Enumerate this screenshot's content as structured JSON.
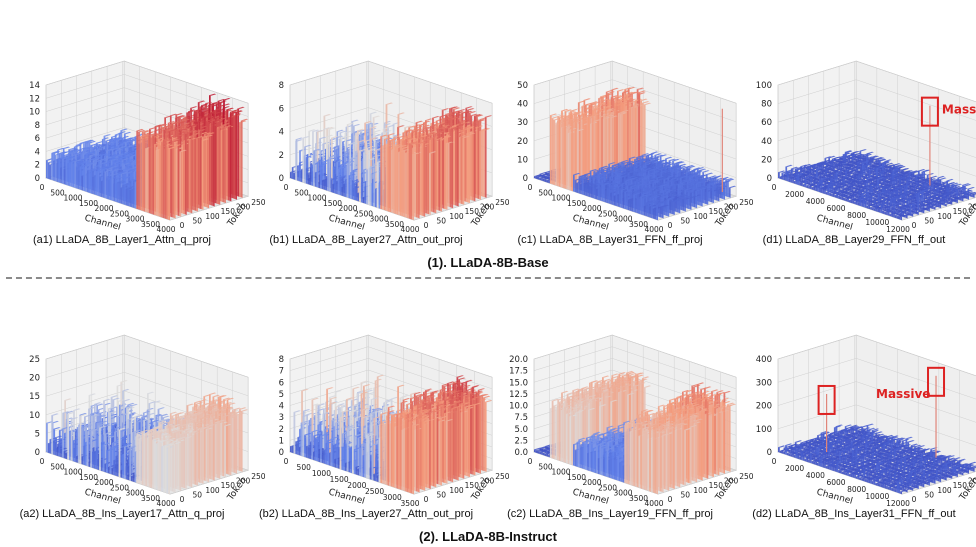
{
  "figure": {
    "groups": [
      {
        "title": "(1). LLaDA-8B-Base"
      },
      {
        "title": "(2). LLaDA-8B-Instruct"
      }
    ]
  },
  "chart_data": [
    {
      "type": "surface3d",
      "id": "a1",
      "caption": "(a1) LLaDA_8B_Layer1_Attn_q_proj",
      "xlabel": "Channel",
      "ylabel": "Token",
      "x_ticks": [
        "0",
        "500",
        "1000",
        "1500",
        "2000",
        "2500",
        "3000",
        "3500",
        "4000"
      ],
      "y_ticks": [
        "0",
        "50",
        "100",
        "150",
        "200",
        "250"
      ],
      "z_ticks": [
        "0",
        "2",
        "4",
        "6",
        "8",
        "10",
        "12",
        "14"
      ],
      "xlim": [
        0,
        4096
      ],
      "ylim": [
        0,
        256
      ],
      "zlim": [
        0,
        14
      ],
      "colormap": "coolwarm",
      "features": [
        {
          "kind": "band",
          "x_start": 0,
          "x_end": 3000,
          "level": 3.8
        },
        {
          "kind": "step",
          "x_start": 3000,
          "x_end": 4096,
          "level_front": 11.5,
          "level_back": 13.5
        }
      ]
    },
    {
      "type": "surface3d",
      "id": "b1",
      "caption": "(b1) LLaDA_8B_Layer27_Attn_out_proj",
      "xlabel": "Channel",
      "ylabel": "Token",
      "x_ticks": [
        "0",
        "500",
        "1000",
        "1500",
        "2000",
        "2500",
        "3000",
        "3500",
        "4000"
      ],
      "y_ticks": [
        "0",
        "50",
        "100",
        "150",
        "200",
        "250"
      ],
      "z_ticks": [
        "0",
        "2",
        "4",
        "6",
        "8"
      ],
      "xlim": [
        0,
        4096
      ],
      "ylim": [
        0,
        256
      ],
      "zlim": [
        0,
        9
      ],
      "colormap": "coolwarm",
      "features": [
        {
          "kind": "noise",
          "x_start": 0,
          "x_end": 3000,
          "level": 3.5
        },
        {
          "kind": "step",
          "x_start": 3000,
          "x_end": 4096,
          "level_front": 7.0,
          "level_back": 7.8
        }
      ]
    },
    {
      "type": "surface3d",
      "id": "c1",
      "caption": "(c1) LLaDA_8B_Layer31_FFN_ff_proj",
      "xlabel": "Channel",
      "ylabel": "Token",
      "x_ticks": [
        "0",
        "500",
        "1000",
        "1500",
        "2000",
        "2500",
        "3000",
        "3500",
        "4000"
      ],
      "y_ticks": [
        "0",
        "50",
        "100",
        "150",
        "200",
        "250"
      ],
      "z_ticks": [
        "0",
        "10",
        "20",
        "30",
        "40",
        "50"
      ],
      "xlim": [
        0,
        4096
      ],
      "ylim": [
        0,
        256
      ],
      "zlim": [
        0,
        55
      ],
      "colormap": "coolwarm",
      "features": [
        {
          "kind": "step",
          "x_start": 500,
          "x_end": 1300,
          "level_front": 40,
          "level_back": 44
        },
        {
          "kind": "band",
          "x_start": 1300,
          "x_end": 4096,
          "level": 10
        },
        {
          "kind": "spike",
          "x": 3900,
          "y": 230,
          "level": 52
        }
      ]
    },
    {
      "type": "surface3d",
      "id": "d1",
      "caption": "(d1) LLaDA_8B_Layer29_FFN_ff_out",
      "xlabel": "Channel",
      "ylabel": "Token",
      "x_ticks": [
        "0",
        "2000",
        "4000",
        "6000",
        "8000",
        "10000",
        "12000"
      ],
      "y_ticks": [
        "0",
        "50",
        "100",
        "150",
        "200",
        "250"
      ],
      "z_ticks": [
        "0",
        "20",
        "40",
        "60",
        "80",
        "100"
      ],
      "xlim": [
        0,
        12288
      ],
      "ylim": [
        0,
        256
      ],
      "zlim": [
        0,
        110
      ],
      "colormap": "coolwarm",
      "features": [
        {
          "kind": "noise",
          "x_start": 0,
          "x_end": 12288,
          "level": 8
        },
        {
          "kind": "spike",
          "x": 9000,
          "y": 200,
          "level": 100
        }
      ],
      "annotations": [
        {
          "text": "Massive",
          "color": "#dd2222"
        }
      ]
    },
    {
      "type": "surface3d",
      "id": "a2",
      "caption": "(a2) LLaDA_8B_Ins_Layer17_Attn_q_proj",
      "xlabel": "Channel",
      "ylabel": "Token",
      "x_ticks": [
        "0",
        "500",
        "1000",
        "1500",
        "2000",
        "2500",
        "3000",
        "3500",
        "4000"
      ],
      "y_ticks": [
        "0",
        "50",
        "100",
        "150",
        "200",
        "250"
      ],
      "z_ticks": [
        "0",
        "5",
        "10",
        "15",
        "20",
        "25"
      ],
      "xlim": [
        0,
        4096
      ],
      "ylim": [
        0,
        256
      ],
      "zlim": [
        0,
        27
      ],
      "colormap": "coolwarm",
      "features": [
        {
          "kind": "noise",
          "x_start": 0,
          "x_end": 3000,
          "level": 9
        },
        {
          "kind": "step",
          "x_start": 3000,
          "x_end": 4096,
          "level_front": 15,
          "level_back": 19
        }
      ]
    },
    {
      "type": "surface3d",
      "id": "b2",
      "caption": "(b2) LLaDA_8B_Ins_Layer27_Attn_out_proj",
      "xlabel": "Channel",
      "ylabel": "Token",
      "x_ticks": [
        "0",
        "500",
        "1000",
        "1500",
        "2000",
        "2500",
        "3000",
        "3500"
      ],
      "y_ticks": [
        "0",
        "50",
        "100",
        "150",
        "200",
        "250"
      ],
      "z_ticks": [
        "0",
        "1",
        "2",
        "3",
        "4",
        "5",
        "6",
        "7",
        "8"
      ],
      "xlim": [
        0,
        4096
      ],
      "ylim": [
        0,
        256
      ],
      "zlim": [
        0,
        8.5
      ],
      "colormap": "coolwarm",
      "features": [
        {
          "kind": "noise",
          "x_start": 0,
          "x_end": 3000,
          "level": 3.5
        },
        {
          "kind": "step",
          "x_start": 3000,
          "x_end": 4096,
          "level_front": 6.5,
          "level_back": 7.5
        }
      ]
    },
    {
      "type": "surface3d",
      "id": "c2",
      "caption": "(c2) LLaDA_8B_Ins_Layer19_FFN_ff_proj",
      "xlabel": "Channel",
      "ylabel": "Token",
      "x_ticks": [
        "0",
        "500",
        "1000",
        "1500",
        "2000",
        "2500",
        "3000",
        "3500",
        "4000"
      ],
      "y_ticks": [
        "0",
        "50",
        "100",
        "150",
        "200",
        "250"
      ],
      "z_ticks": [
        "0.0",
        "2.5",
        "5.0",
        "7.5",
        "10.0",
        "12.5",
        "15.0",
        "17.5",
        "20.0"
      ],
      "xlim": [
        0,
        4096
      ],
      "ylim": [
        0,
        256
      ],
      "zlim": [
        0,
        21
      ],
      "colormap": "coolwarm",
      "features": [
        {
          "kind": "step",
          "x_start": 500,
          "x_end": 1300,
          "level_front": 13,
          "level_back": 15
        },
        {
          "kind": "band",
          "x_start": 1300,
          "x_end": 3000,
          "level": 6
        },
        {
          "kind": "step",
          "x_start": 3000,
          "x_end": 4096,
          "level_front": 14,
          "level_back": 17
        }
      ]
    },
    {
      "type": "surface3d",
      "id": "d2",
      "caption": "(d2) LLaDA_8B_Ins_Layer31_FFN_ff_out",
      "xlabel": "Channel",
      "ylabel": "Token",
      "x_ticks": [
        "0",
        "2000",
        "4000",
        "6000",
        "8000",
        "10000",
        "12000"
      ],
      "y_ticks": [
        "0",
        "50",
        "100",
        "150",
        "200",
        "250"
      ],
      "z_ticks": [
        "0",
        "100",
        "200",
        "300",
        "400"
      ],
      "xlim": [
        0,
        12288
      ],
      "ylim": [
        0,
        256
      ],
      "zlim": [
        0,
        430
      ],
      "colormap": "coolwarm",
      "features": [
        {
          "kind": "noise",
          "x_start": 0,
          "x_end": 12288,
          "level": 30
        },
        {
          "kind": "spike",
          "x": 3000,
          "y": 60,
          "level": 290
        },
        {
          "kind": "spike",
          "x": 9000,
          "y": 220,
          "level": 400
        }
      ],
      "annotations": [
        {
          "text": "Massive",
          "color": "#dd2222"
        }
      ]
    }
  ]
}
